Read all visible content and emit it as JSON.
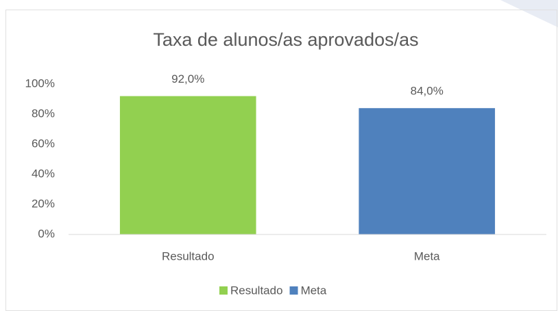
{
  "chart_data": {
    "type": "bar",
    "title": "Taxa  de alunos/as aprovados/as",
    "categories": [
      "Resultado",
      "Meta"
    ],
    "values": [
      92,
      84
    ],
    "value_labels": [
      "92,0%",
      "84,0%"
    ],
    "colors": [
      "#92d050",
      "#4f81bd"
    ],
    "ylim": [
      0,
      100
    ],
    "yticks": [
      {
        "value": 0,
        "label": "0%"
      },
      {
        "value": 20,
        "label": "20%"
      },
      {
        "value": 40,
        "label": "40%"
      },
      {
        "value": 60,
        "label": "60%"
      },
      {
        "value": 80,
        "label": "80%"
      },
      {
        "value": 100,
        "label": "100%"
      }
    ],
    "grid": false,
    "legend": "bottom"
  }
}
